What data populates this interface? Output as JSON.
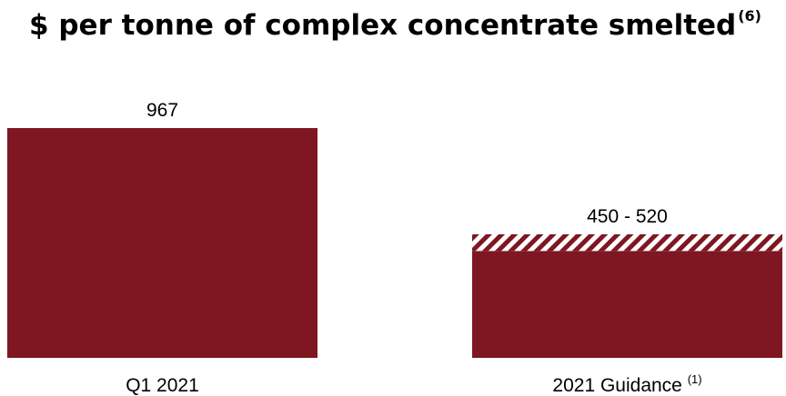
{
  "title": "$ per tonne of complex concentrate smelted",
  "title_footnote": "(6)",
  "chart_data": {
    "type": "bar",
    "title": "$ per tonne of complex concentrate smelted",
    "categories": [
      "Q1 2021",
      "2021 Guidance"
    ],
    "category_footnotes": [
      "",
      "(1)"
    ],
    "bars": [
      {
        "category": "Q1 2021",
        "value": 967,
        "label": "967"
      },
      {
        "category": "2021 Guidance",
        "range": [
          450,
          520
        ],
        "label": "450 - 520"
      }
    ],
    "xlabel": "",
    "ylabel": "",
    "grid": false,
    "legend": "none",
    "colors": {
      "bar": "#7e1721",
      "range_hatch_light": "#ffffff"
    }
  }
}
